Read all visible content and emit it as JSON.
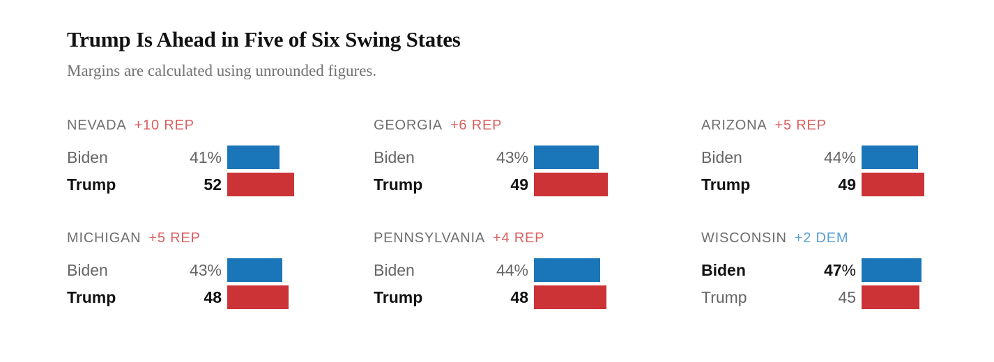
{
  "title": "Trump Is Ahead in Five of Six Swing States",
  "subtitle": "Margins are calculated using unrounded figures.",
  "colors": {
    "dem_bar": "#1a76b8",
    "rep_bar": "#cc3336",
    "rep_margin_text": "#d95f5f",
    "dem_margin_text": "#5b9fd4",
    "state_label": "#6e6e6e",
    "muted_text": "#666666",
    "leader_text": "#121212"
  },
  "chart_data": {
    "type": "bar",
    "orientation": "horizontal",
    "unit": "%",
    "title": "Trump Is Ahead in Five of Six Swing States",
    "subtitle": "Margins are calculated using unrounded figures.",
    "value_range": [
      0,
      100
    ],
    "grid": false,
    "legend": false,
    "panels": [
      {
        "state": "NEVADA",
        "margin": "+10 REP",
        "margin_party": "REP",
        "rows": [
          {
            "candidate": "Biden",
            "value": 41,
            "suffix": "%",
            "party": "dem",
            "leader": false
          },
          {
            "candidate": "Trump",
            "value": 52,
            "suffix": "",
            "party": "rep",
            "leader": true
          }
        ]
      },
      {
        "state": "GEORGIA",
        "margin": "+6 REP",
        "margin_party": "REP",
        "rows": [
          {
            "candidate": "Biden",
            "value": 43,
            "suffix": "%",
            "party": "dem",
            "leader": false
          },
          {
            "candidate": "Trump",
            "value": 49,
            "suffix": "",
            "party": "rep",
            "leader": true
          }
        ]
      },
      {
        "state": "ARIZONA",
        "margin": "+5 REP",
        "margin_party": "REP",
        "rows": [
          {
            "candidate": "Biden",
            "value": 44,
            "suffix": "%",
            "party": "dem",
            "leader": false
          },
          {
            "candidate": "Trump",
            "value": 49,
            "suffix": "",
            "party": "rep",
            "leader": true
          }
        ]
      },
      {
        "state": "MICHIGAN",
        "margin": "+5 REP",
        "margin_party": "REP",
        "rows": [
          {
            "candidate": "Biden",
            "value": 43,
            "suffix": "%",
            "party": "dem",
            "leader": false
          },
          {
            "candidate": "Trump",
            "value": 48,
            "suffix": "",
            "party": "rep",
            "leader": true
          }
        ]
      },
      {
        "state": "PENNSYLVANIA",
        "margin": "+4 REP",
        "margin_party": "REP",
        "rows": [
          {
            "candidate": "Biden",
            "value": 44,
            "suffix": "%",
            "party": "dem",
            "leader": false
          },
          {
            "candidate": "Trump",
            "value": 48,
            "suffix": "",
            "party": "rep",
            "leader": true
          }
        ]
      },
      {
        "state": "WISCONSIN",
        "margin": "+2 DEM",
        "margin_party": "DEM",
        "rows": [
          {
            "candidate": "Biden",
            "value": 47,
            "suffix": "%",
            "party": "dem",
            "leader": true
          },
          {
            "candidate": "Trump",
            "value": 45,
            "suffix": "",
            "party": "rep",
            "leader": false
          }
        ]
      }
    ]
  }
}
